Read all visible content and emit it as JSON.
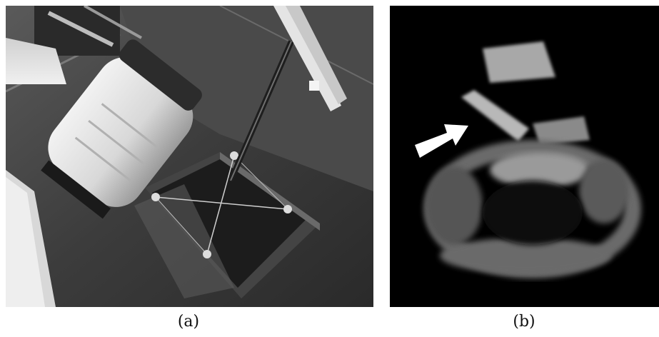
{
  "panels": [
    {
      "id": "a",
      "caption": "(a)"
    },
    {
      "id": "b",
      "caption": "(b)"
    }
  ]
}
